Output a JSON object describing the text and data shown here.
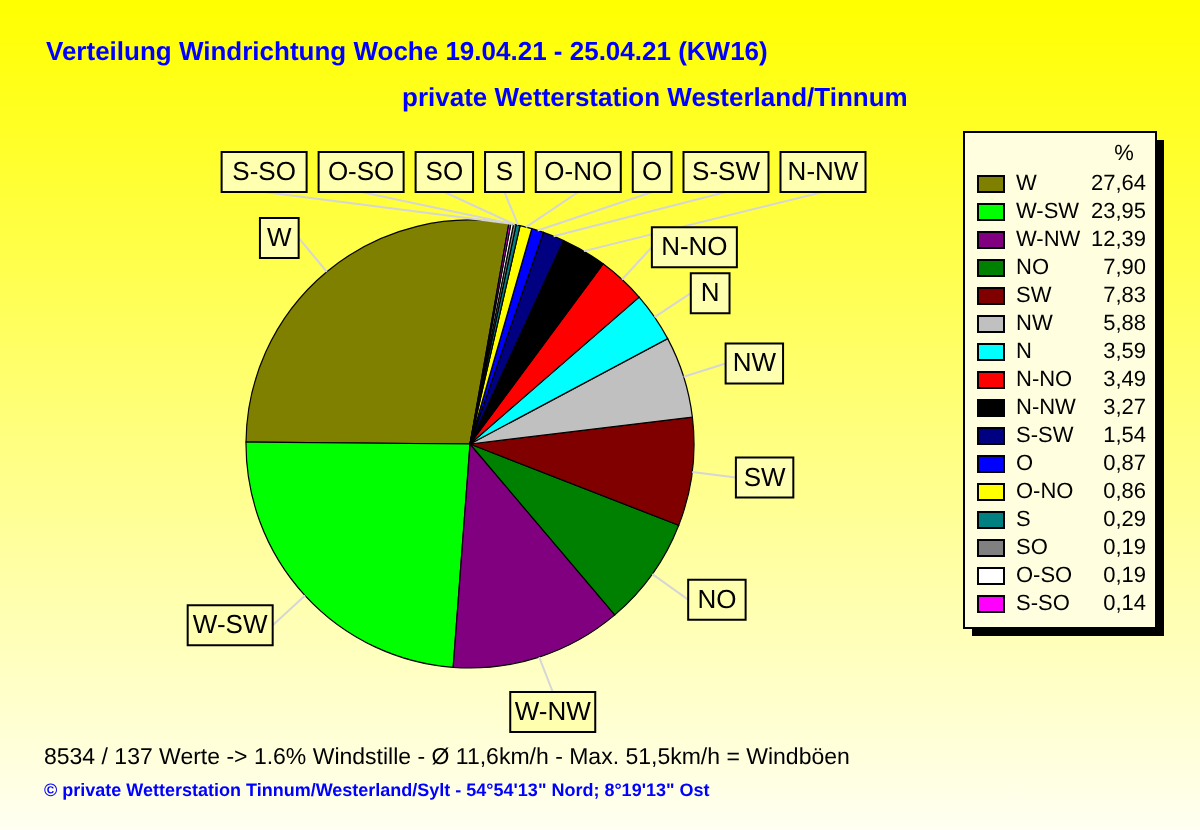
{
  "chart_data": {
    "type": "pie",
    "title": "Verteilung Windrichtung   Woche 19.04.21 - 25.04.21 (KW16)",
    "subtitle": "private Wetterstation Westerland/Tinnum",
    "categories": [
      "W",
      "W-SW",
      "W-NW",
      "NO",
      "SW",
      "NW",
      "N",
      "N-NO",
      "N-NW",
      "S-SW",
      "O",
      "O-NO",
      "S",
      "SO",
      "O-SO",
      "S-SO"
    ],
    "values": [
      27.64,
      23.95,
      12.39,
      7.9,
      7.83,
      5.88,
      3.59,
      3.49,
      3.27,
      1.54,
      0.87,
      0.86,
      0.29,
      0.19,
      0.19,
      0.14
    ],
    "value_labels": [
      "27,64",
      "23,95",
      "12,39",
      "7,90",
      "7,83",
      "5,88",
      "3,59",
      "3,49",
      "3,27",
      "1,54",
      "0,87",
      "0,86",
      "0,29",
      "0,19",
      "0,19",
      "0,14"
    ],
    "colors": [
      "#808000",
      "#00ff00",
      "#800080",
      "#008000",
      "#800000",
      "#c0c0c0",
      "#00ffff",
      "#ff0000",
      "#000000",
      "#000080",
      "#0000ff",
      "#ffff00",
      "#008080",
      "#808080",
      "#ffffff",
      "#ff00ff"
    ],
    "legend": "right",
    "legend_title": "%",
    "annotations": [
      "8534 / 137 Werte  -> 1.6% Windstille   -   Ø 11,6km/h   -   Max. 51,5km/h = Windböen",
      "© private Wetterstation Tinnum/Westerland/Sylt   -   54°54'13\" Nord; 8°19'13\" Ost"
    ]
  }
}
